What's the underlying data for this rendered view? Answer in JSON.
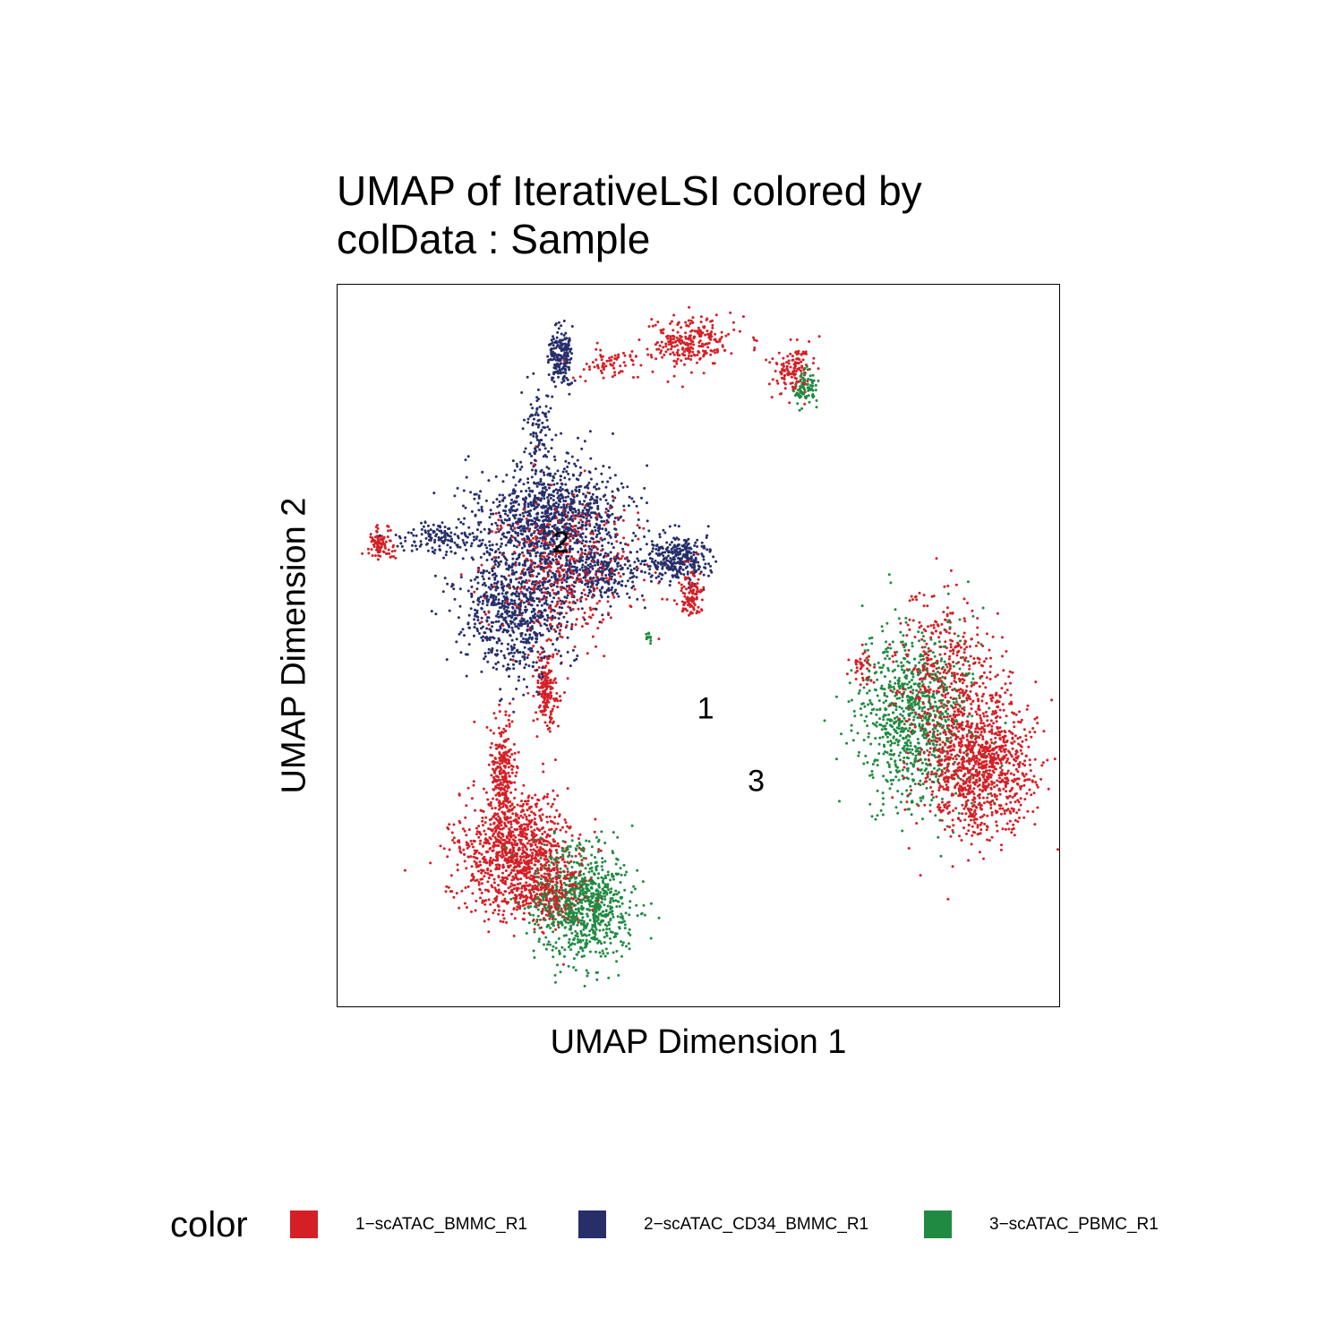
{
  "chart_data": {
    "type": "scatter",
    "title_lines": [
      "UMAP of IterativeLSI  colored by",
      "colData :  Sample"
    ],
    "xlabel": "UMAP Dimension 1",
    "ylabel": "UMAP Dimension 2",
    "grid": false,
    "legend_placement": "bottom",
    "legend_title": "color",
    "series": [
      {
        "name": "1−scATAC_BMMC_R1",
        "color": "#D51F26"
      },
      {
        "name": "2−scATAC_CD34_BMMC_R1",
        "color": "#272E6A"
      },
      {
        "name": "3−scATAC_PBMC_R1",
        "color": "#208A42"
      }
    ],
    "cluster_labels": [
      {
        "text": "1",
        "x": 0.51,
        "y": 0.59
      },
      {
        "text": "2",
        "x": 0.31,
        "y": 0.36
      },
      {
        "text": "3",
        "x": 0.58,
        "y": 0.69
      }
    ],
    "clusters": [
      {
        "series": 0,
        "cx": 0.25,
        "cy": 0.79,
        "rx": 0.07,
        "ry": 0.08,
        "n": 1100
      },
      {
        "series": 2,
        "cx": 0.34,
        "cy": 0.86,
        "rx": 0.06,
        "ry": 0.07,
        "n": 850
      },
      {
        "series": 0,
        "cx": 0.3,
        "cy": 0.84,
        "rx": 0.04,
        "ry": 0.04,
        "n": 150
      },
      {
        "series": 0,
        "cx": 0.23,
        "cy": 0.68,
        "rx": 0.015,
        "ry": 0.07,
        "n": 260
      },
      {
        "series": 0,
        "cx": 0.29,
        "cy": 0.56,
        "rx": 0.015,
        "ry": 0.05,
        "n": 180
      },
      {
        "series": 1,
        "cx": 0.3,
        "cy": 0.32,
        "rx": 0.09,
        "ry": 0.06,
        "n": 1000
      },
      {
        "series": 1,
        "cx": 0.25,
        "cy": 0.44,
        "rx": 0.07,
        "ry": 0.09,
        "n": 900
      },
      {
        "series": 1,
        "cx": 0.47,
        "cy": 0.38,
        "rx": 0.04,
        "ry": 0.03,
        "n": 320
      },
      {
        "series": 1,
        "cx": 0.36,
        "cy": 0.4,
        "rx": 0.06,
        "ry": 0.04,
        "n": 350
      },
      {
        "series": 0,
        "cx": 0.31,
        "cy": 0.4,
        "rx": 0.09,
        "ry": 0.09,
        "n": 360
      },
      {
        "series": 0,
        "cx": 0.49,
        "cy": 0.43,
        "rx": 0.015,
        "ry": 0.03,
        "n": 110
      },
      {
        "series": 0,
        "cx": 0.06,
        "cy": 0.36,
        "rx": 0.018,
        "ry": 0.02,
        "n": 90
      },
      {
        "series": 1,
        "cx": 0.14,
        "cy": 0.35,
        "rx": 0.05,
        "ry": 0.02,
        "n": 120
      },
      {
        "series": 1,
        "cx": 0.31,
        "cy": 0.1,
        "rx": 0.015,
        "ry": 0.04,
        "n": 200
      },
      {
        "series": 1,
        "cx": 0.28,
        "cy": 0.2,
        "rx": 0.02,
        "ry": 0.05,
        "n": 90
      },
      {
        "series": 0,
        "cx": 0.38,
        "cy": 0.11,
        "rx": 0.04,
        "ry": 0.02,
        "n": 70
      },
      {
        "series": 0,
        "cx": 0.49,
        "cy": 0.08,
        "rx": 0.05,
        "ry": 0.03,
        "n": 260
      },
      {
        "series": 0,
        "cx": 0.63,
        "cy": 0.12,
        "rx": 0.025,
        "ry": 0.03,
        "n": 140
      },
      {
        "series": 2,
        "cx": 0.65,
        "cy": 0.14,
        "rx": 0.015,
        "ry": 0.02,
        "n": 80
      },
      {
        "series": 2,
        "cx": 0.8,
        "cy": 0.6,
        "rx": 0.07,
        "ry": 0.11,
        "n": 900
      },
      {
        "series": 0,
        "cx": 0.89,
        "cy": 0.66,
        "rx": 0.07,
        "ry": 0.09,
        "n": 1100
      },
      {
        "series": 0,
        "cx": 0.84,
        "cy": 0.53,
        "rx": 0.06,
        "ry": 0.09,
        "n": 320
      },
      {
        "series": 0,
        "cx": 0.73,
        "cy": 0.53,
        "rx": 0.02,
        "ry": 0.02,
        "n": 40
      },
      {
        "series": 2,
        "cx": 0.43,
        "cy": 0.49,
        "rx": 0.006,
        "ry": 0.01,
        "n": 12
      }
    ]
  }
}
